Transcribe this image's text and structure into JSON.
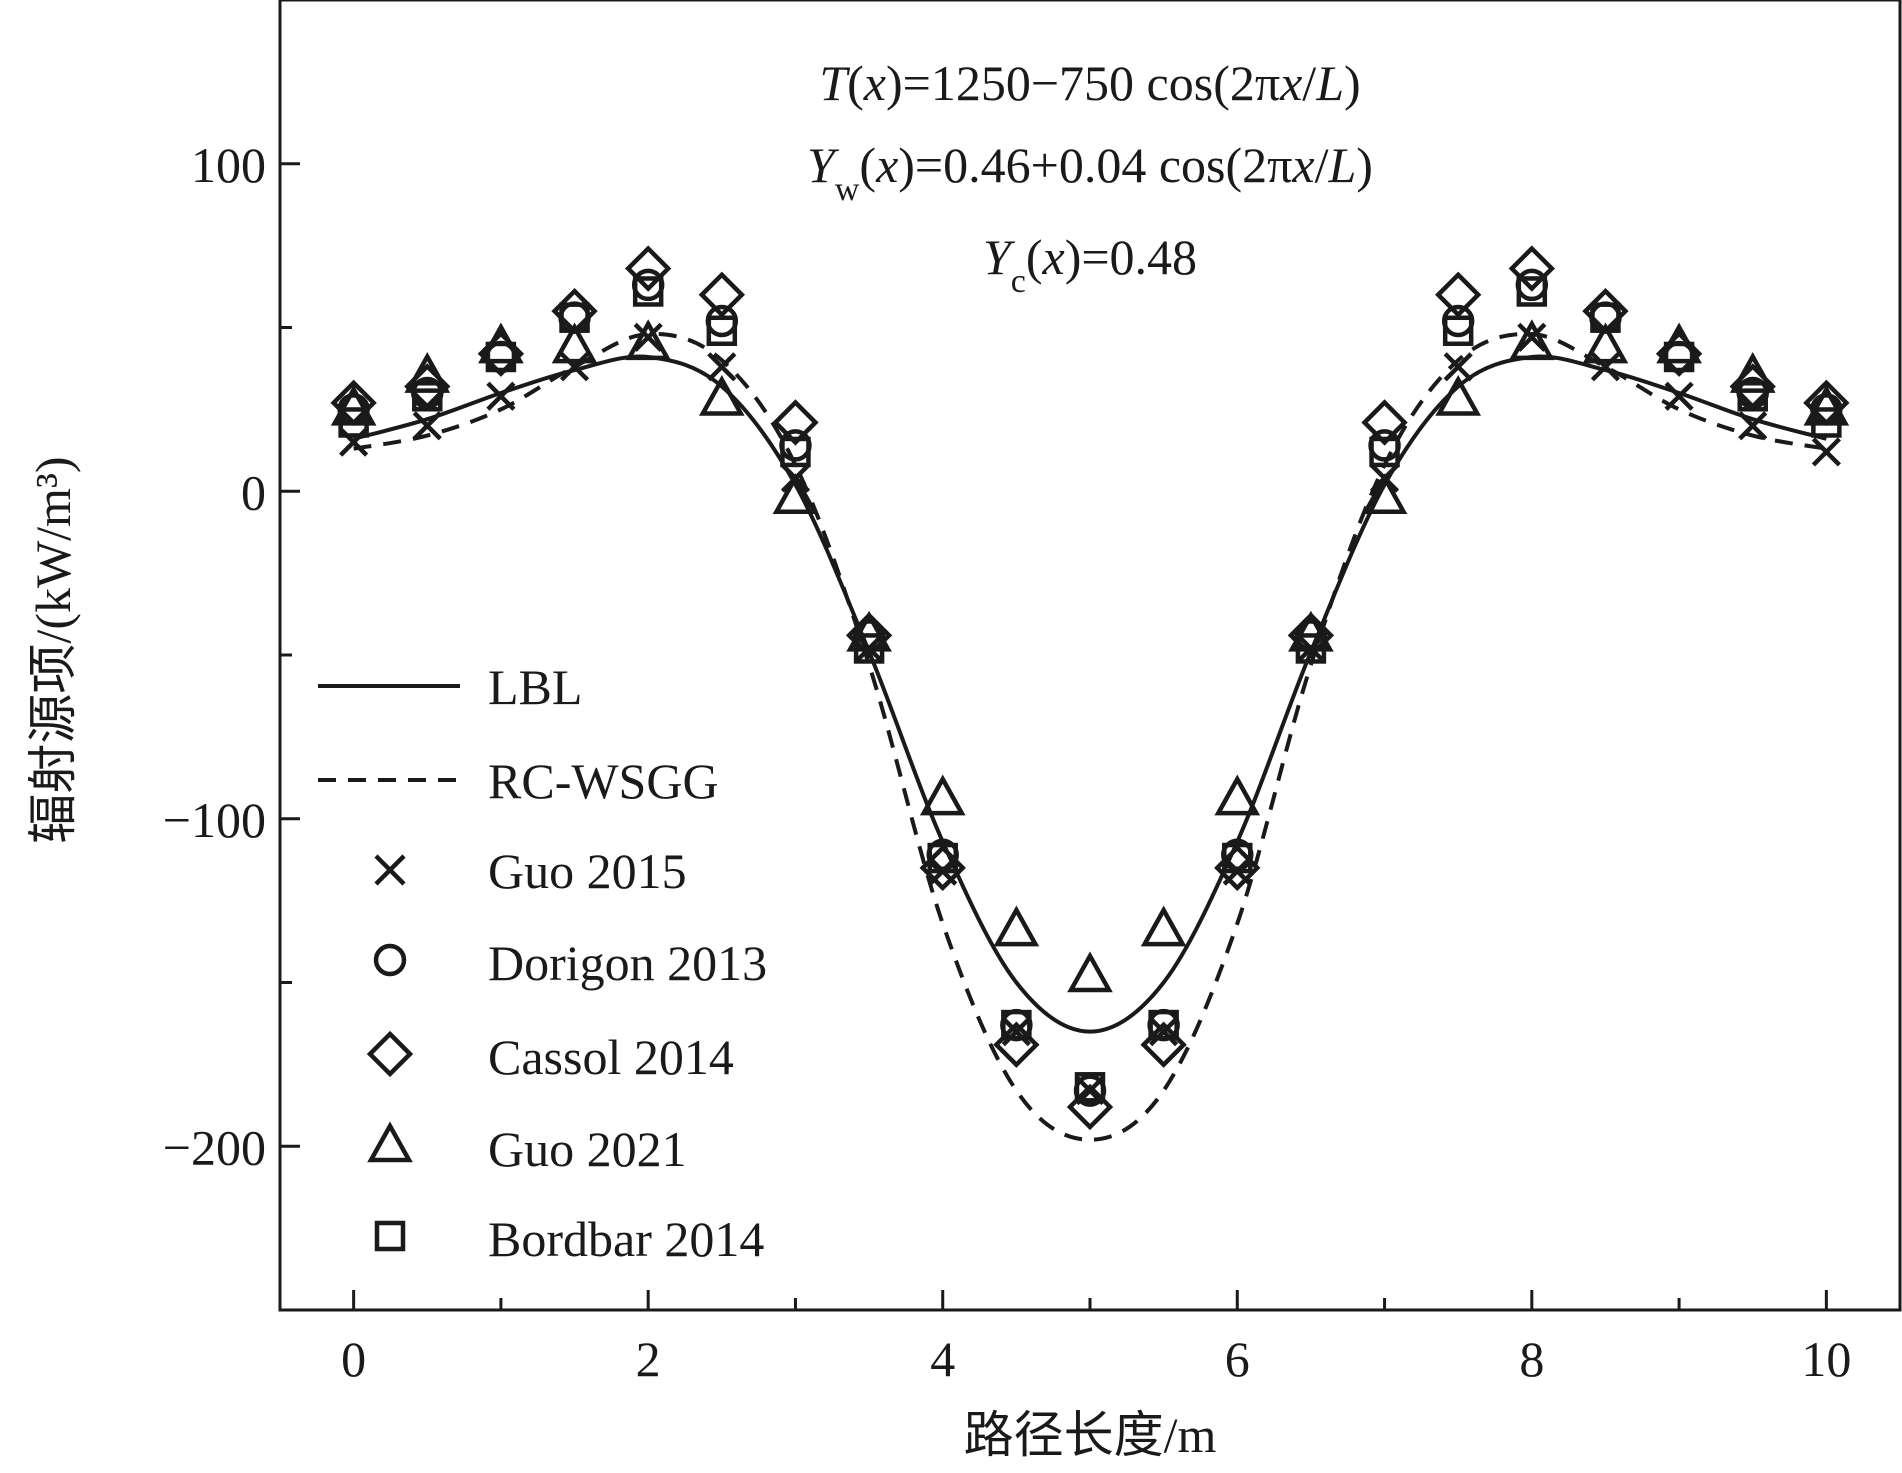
{
  "chart_data": {
    "type": "line",
    "xlabel": "路径长度/m",
    "ylabel": "辐射源项/(kW/m³)",
    "xlim": [
      -0.5,
      10.5
    ],
    "ylim": [
      -250,
      150
    ],
    "xticks": [
      0,
      2,
      4,
      6,
      8,
      10
    ],
    "yticks": [
      100,
      0,
      -100,
      -200
    ],
    "xtick_labels": [
      "0",
      "2",
      "4",
      "6",
      "8",
      "10"
    ],
    "ytick_labels": [
      "100",
      "0",
      "−100",
      "−200"
    ],
    "annotations": {
      "line1": "T(x)=1250−750 cos(2πx/L)",
      "line2": "Yw(x)=0.46+0.04 cos(2πx/L)",
      "line3": "Yc(x)=0.48",
      "line1_parts": {
        "var": "T",
        "arg": "(",
        "x": "x",
        "rest": ")=1250−750 cos(2π",
        "x2": "x",
        "slash": "/",
        "L": "L",
        "close": ")"
      },
      "line2_parts": {
        "var": "Y",
        "sub": "w",
        "arg": "(",
        "x": "x",
        "rest": ")=0.46+0.04 cos(2π",
        "x2": "x",
        "slash": "/",
        "L": "L",
        "close": ")"
      },
      "line3_parts": {
        "var": "Y",
        "sub": "c",
        "arg": "(",
        "x": "x",
        "rest": ")=0.48"
      }
    },
    "legend": {
      "position": "left",
      "entries": [
        {
          "name": "LBL",
          "marker": "solid-line"
        },
        {
          "name": "RC-WSGG",
          "marker": "dashed-line"
        },
        {
          "name": "Guo 2015",
          "marker": "x"
        },
        {
          "name": "Dorigon 2013",
          "marker": "circle"
        },
        {
          "name": "Cassol 2014",
          "marker": "diamond"
        },
        {
          "name": "Guo 2021",
          "marker": "triangle"
        },
        {
          "name": "Bordbar 2014",
          "marker": "square"
        }
      ]
    },
    "x": [
      0,
      0.5,
      1,
      1.5,
      2,
      2.5,
      3,
      3.5,
      4,
      4.5,
      5,
      5.5,
      6,
      6.5,
      7,
      7.5,
      8,
      8.5,
      9,
      9.5,
      10
    ],
    "series": [
      {
        "name": "Guo 2015",
        "marker": "x",
        "values": [
          15,
          20,
          29,
          38,
          47,
          38,
          4,
          -48,
          -116,
          -165,
          -183,
          -165,
          -116,
          -48,
          4,
          38,
          47,
          38,
          29,
          20,
          12
        ]
      },
      {
        "name": "Dorigon 2013",
        "marker": "circle",
        "values": [
          25,
          30,
          41,
          53,
          63,
          52,
          14,
          -44,
          -111,
          -163,
          -183,
          -163,
          -111,
          -44,
          14,
          52,
          63,
          53,
          41,
          30,
          25
        ]
      },
      {
        "name": "Cassol 2014",
        "marker": "diamond",
        "values": [
          27,
          32,
          42,
          55,
          68,
          60,
          21,
          -44,
          -115,
          -169,
          -188,
          -169,
          -115,
          -44,
          21,
          60,
          68,
          55,
          42,
          32,
          27
        ]
      },
      {
        "name": "Guo 2021",
        "marker": "triangle",
        "values": [
          25,
          35,
          44,
          44,
          45,
          28,
          -2,
          -44,
          -94,
          -134,
          -148,
          -134,
          -94,
          -44,
          -2,
          28,
          45,
          44,
          44,
          35,
          25
        ]
      },
      {
        "name": "Bordbar 2014",
        "marker": "square",
        "values": [
          21,
          29,
          41,
          53,
          61,
          49,
          12,
          -48,
          -112,
          -163,
          -182,
          -163,
          -112,
          -48,
          12,
          49,
          61,
          53,
          41,
          29,
          21
        ]
      }
    ],
    "curves": [
      {
        "name": "LBL",
        "style": "solid",
        "x": [
          0,
          0.5,
          1,
          1.5,
          2,
          2.5,
          3,
          3.5,
          4,
          4.5,
          5,
          5.5,
          6,
          6.5,
          7,
          7.5,
          8,
          8.5,
          9,
          9.5,
          10
        ],
        "values": [
          16,
          22,
          30,
          37,
          41,
          32,
          2,
          -49,
          -107,
          -150,
          -165,
          -150,
          -107,
          -49,
          2,
          32,
          41,
          37,
          30,
          22,
          16
        ]
      },
      {
        "name": "RC-WSGG",
        "style": "dashed",
        "x": [
          0,
          0.5,
          1,
          1.5,
          2,
          2.5,
          3,
          3.5,
          4,
          4.5,
          5,
          5.5,
          6,
          6.5,
          7,
          7.5,
          8,
          8.5,
          9,
          9.5,
          10
        ],
        "values": [
          13,
          17,
          25,
          38,
          48,
          40,
          8,
          -53,
          -132,
          -183,
          -198,
          -183,
          -132,
          -53,
          8,
          40,
          48,
          38,
          25,
          17,
          13
        ]
      }
    ]
  }
}
